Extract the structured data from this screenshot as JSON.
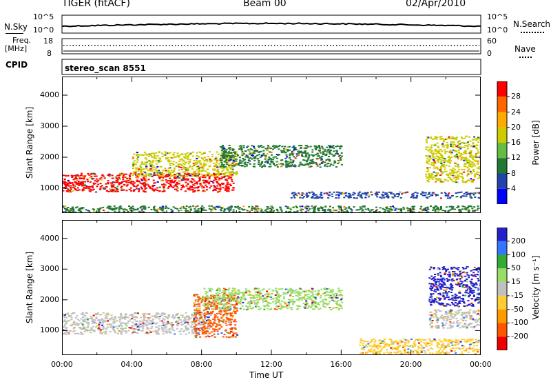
{
  "header": {
    "station": "TIGER (fitACF)",
    "beam": "Beam 00",
    "date": "02/Apr/2010"
  },
  "top_panels": {
    "nsky_label": "N.Sky",
    "nsearch_label": "N.Search",
    "nsky_ticks": [
      "10^5",
      "10^0"
    ],
    "nsearch_ticks": [
      "10^5",
      "10^0"
    ],
    "freq_label_1": "Freq.",
    "freq_label_2": "[MHz]",
    "freq_ticks": [
      "18",
      "8"
    ],
    "nave_label": "Nave",
    "nave_ticks": [
      "60",
      "0"
    ],
    "cpid_label": "CPID",
    "cpid_value": "stereo_scan 8551"
  },
  "chart_data": [
    {
      "type": "heatmap",
      "title": "",
      "xlabel": "",
      "ylabel": "Slant Range [km]",
      "x_ticks": [
        "00:00",
        "04:00",
        "08:00",
        "12:00",
        "16:00",
        "20:00",
        "00:00"
      ],
      "y_ticks": [
        1000,
        2000,
        3000,
        4000
      ],
      "ylim": [
        200,
        4600
      ],
      "xlim_hours": [
        0,
        24
      ],
      "colorbar": {
        "label": "Power [dB]",
        "ticks": [
          "28",
          "24",
          "20",
          "16",
          "12",
          "8",
          "4"
        ],
        "colors": [
          "#ff0000",
          "#ff6600",
          "#ffaa00",
          "#cccc00",
          "#66bb44",
          "#227733",
          "#2244aa",
          "#0000ff"
        ]
      },
      "regions": [
        {
          "name": "main-echo",
          "x": [
            0,
            9.8
          ],
          "y": [
            900,
            1500
          ],
          "level": 28
        },
        {
          "name": "main-echo-upper",
          "x": [
            4,
            10
          ],
          "y": [
            1400,
            2200
          ],
          "level": 16
        },
        {
          "name": "mid-band",
          "x": [
            9,
            16
          ],
          "y": [
            1700,
            2400
          ],
          "level": 8
        },
        {
          "name": "low-band",
          "x": [
            13,
            24
          ],
          "y": [
            700,
            900
          ],
          "level": 4
        },
        {
          "name": "late-echo",
          "x": [
            20.8,
            24
          ],
          "y": [
            1200,
            2700
          ],
          "level": 16
        },
        {
          "name": "ground-strip",
          "x": [
            0,
            24
          ],
          "y": [
            200,
            450
          ],
          "level": 8
        }
      ]
    },
    {
      "type": "heatmap",
      "title": "",
      "xlabel": "Time UT",
      "ylabel": "Slant Range [km]",
      "x_ticks": [
        "00:00",
        "04:00",
        "08:00",
        "12:00",
        "16:00",
        "20:00",
        "00:00"
      ],
      "y_ticks": [
        1000,
        2000,
        3000,
        4000
      ],
      "ylim": [
        200,
        4600
      ],
      "xlim_hours": [
        0,
        24
      ],
      "colorbar": {
        "label": "Velocity [m s⁻¹]",
        "ticks": [
          "200",
          "100",
          "50",
          "15",
          "-15",
          "-50",
          "-100",
          "-200"
        ],
        "colors": [
          "#2222cc",
          "#3377ff",
          "#33aa33",
          "#99dd66",
          "#c0c0c0",
          "#ffcc33",
          "#ff9900",
          "#ff5500",
          "#ee0000"
        ]
      },
      "regions": [
        {
          "name": "gray-band",
          "x": [
            0,
            8.5
          ],
          "y": [
            900,
            1600
          ],
          "level": -15
        },
        {
          "name": "red-echo",
          "x": [
            7.5,
            10
          ],
          "y": [
            800,
            2200
          ],
          "level": -200
        },
        {
          "name": "gray-upper",
          "x": [
            8,
            16
          ],
          "y": [
            1700,
            2400
          ],
          "level": 15
        },
        {
          "name": "orange-low",
          "x": [
            17,
            24
          ],
          "y": [
            250,
            750
          ],
          "level": -50
        },
        {
          "name": "late-blue-red",
          "x": [
            21,
            24
          ],
          "y": [
            1800,
            3100
          ],
          "level": 200
        },
        {
          "name": "late-gray",
          "x": [
            21,
            24
          ],
          "y": [
            1100,
            1700
          ],
          "level": -15
        }
      ]
    }
  ]
}
